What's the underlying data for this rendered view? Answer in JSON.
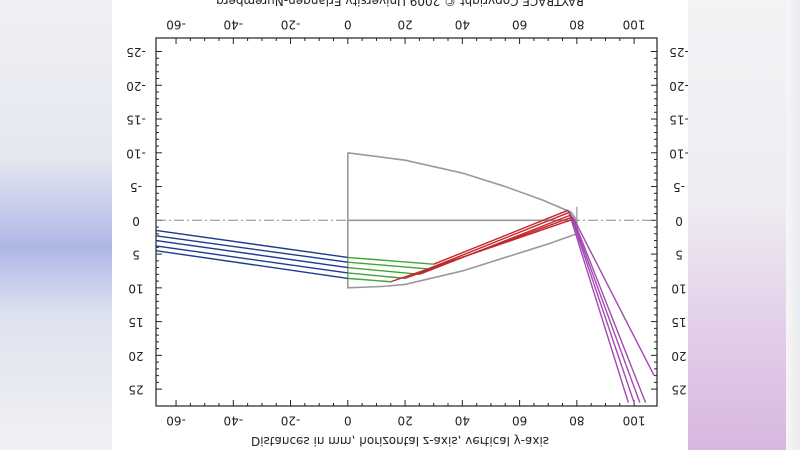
{
  "title": "RAYTRACE Copyright © 2009 University Erlangen-Nuremberg",
  "xlabel": "Distances in mm, horizontal z-axis, vertical y-axis",
  "x_ticks": [
    "-60",
    "-40",
    "-20",
    "0",
    "20",
    "40",
    "60",
    "80",
    "100"
  ],
  "y_ticks": [
    "-25",
    "-20",
    "-15",
    "-10",
    "-5",
    "0",
    "5",
    "10",
    "15",
    "20",
    "25"
  ],
  "chart_data": {
    "type": "line",
    "title": "RAYTRACE Copyright © 2009 University Erlangen-Nuremberg",
    "xlabel": "Distances in mm, horizontal z-axis, vertical y-axis",
    "ylabel": "",
    "xlim": [
      -67,
      108
    ],
    "ylim": [
      -27,
      27.5
    ],
    "y_axis_inverted": true,
    "grid": false,
    "optical_axis_y": 0,
    "colors": {
      "incoming": "#1f3a93",
      "refracted": "#3fa535",
      "reflected": "#c0282e",
      "outgoing": "#a24bb0",
      "element": "#9a9a9a",
      "axis": "#888888"
    },
    "element_outline": [
      [
        0,
        -10
      ],
      [
        20,
        -8.9
      ],
      [
        40,
        -7
      ],
      [
        55,
        -5
      ],
      [
        68,
        -3
      ],
      [
        78,
        -1.2
      ],
      [
        80,
        0
      ],
      [
        80,
        2
      ],
      [
        70,
        3.5
      ],
      [
        55,
        5.5
      ],
      [
        40,
        7.5
      ],
      [
        20,
        9.5
      ],
      [
        12,
        9.8
      ],
      [
        0,
        10
      ],
      [
        0,
        -10
      ]
    ],
    "optical_axis_line": [
      [
        0,
        0
      ],
      [
        80,
        0
      ]
    ],
    "rays": [
      {
        "incoming": [
          [
            -67,
            1.5
          ],
          [
            0,
            5.5
          ]
        ],
        "refracted": [
          [
            0,
            5.5
          ],
          [
            30,
            6.5
          ]
        ],
        "reflected": [
          [
            30,
            6.5
          ],
          [
            77,
            -1.5
          ]
        ],
        "outgoing": [
          [
            77,
            -1.5
          ],
          [
            98,
            27
          ]
        ]
      },
      {
        "incoming": [
          [
            -67,
            2.3
          ],
          [
            0,
            6.2
          ]
        ],
        "refracted": [
          [
            0,
            6.2
          ],
          [
            28,
            7.2
          ]
        ],
        "reflected": [
          [
            28,
            7.2
          ],
          [
            77.5,
            -1.2
          ]
        ],
        "outgoing": [
          [
            77.5,
            -1.2
          ],
          [
            100,
            27
          ]
        ]
      },
      {
        "incoming": [
          [
            -67,
            3.0
          ],
          [
            0,
            7.0
          ]
        ],
        "refracted": [
          [
            0,
            7.0
          ],
          [
            25,
            8.0
          ]
        ],
        "reflected": [
          [
            25,
            8.0
          ],
          [
            78,
            -0.8
          ]
        ],
        "outgoing": [
          [
            78,
            -0.8
          ],
          [
            102,
            27
          ]
        ]
      },
      {
        "incoming": [
          [
            -67,
            3.8
          ],
          [
            0,
            7.8
          ]
        ],
        "refracted": [
          [
            0,
            7.8
          ],
          [
            20,
            8.6
          ]
        ],
        "reflected": [
          [
            20,
            8.6
          ],
          [
            78.5,
            -0.5
          ]
        ],
        "outgoing": [
          [
            78.5,
            -0.5
          ],
          [
            104,
            27
          ]
        ]
      },
      {
        "incoming": [
          [
            -67,
            4.5
          ],
          [
            0,
            8.6
          ]
        ],
        "refracted": [
          [
            0,
            8.6
          ],
          [
            15,
            9.1
          ]
        ],
        "reflected": [
          [
            15,
            9.1
          ],
          [
            79,
            -0.2
          ]
        ],
        "outgoing": [
          [
            79,
            -0.2
          ],
          [
            107,
            23
          ]
        ]
      }
    ]
  }
}
